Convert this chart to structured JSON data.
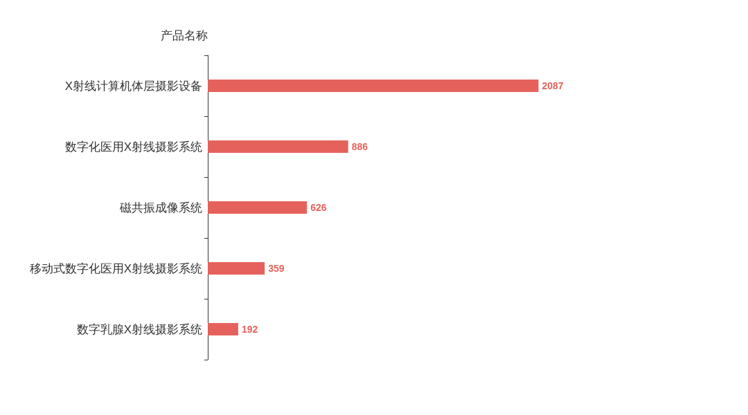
{
  "chart_data": {
    "type": "bar",
    "orientation": "horizontal",
    "ylabel": "产品名称",
    "categories": [
      "X射线计算机体层摄影设备",
      "数字化医用X射线摄影系统",
      "磁共振成像系统",
      "移动式数字化医用X射线摄影系统",
      "数字乳腺X射线摄影系统"
    ],
    "values": [
      2087,
      886,
      626,
      359,
      192
    ],
    "color": "#e5625c",
    "data_labels": true
  }
}
